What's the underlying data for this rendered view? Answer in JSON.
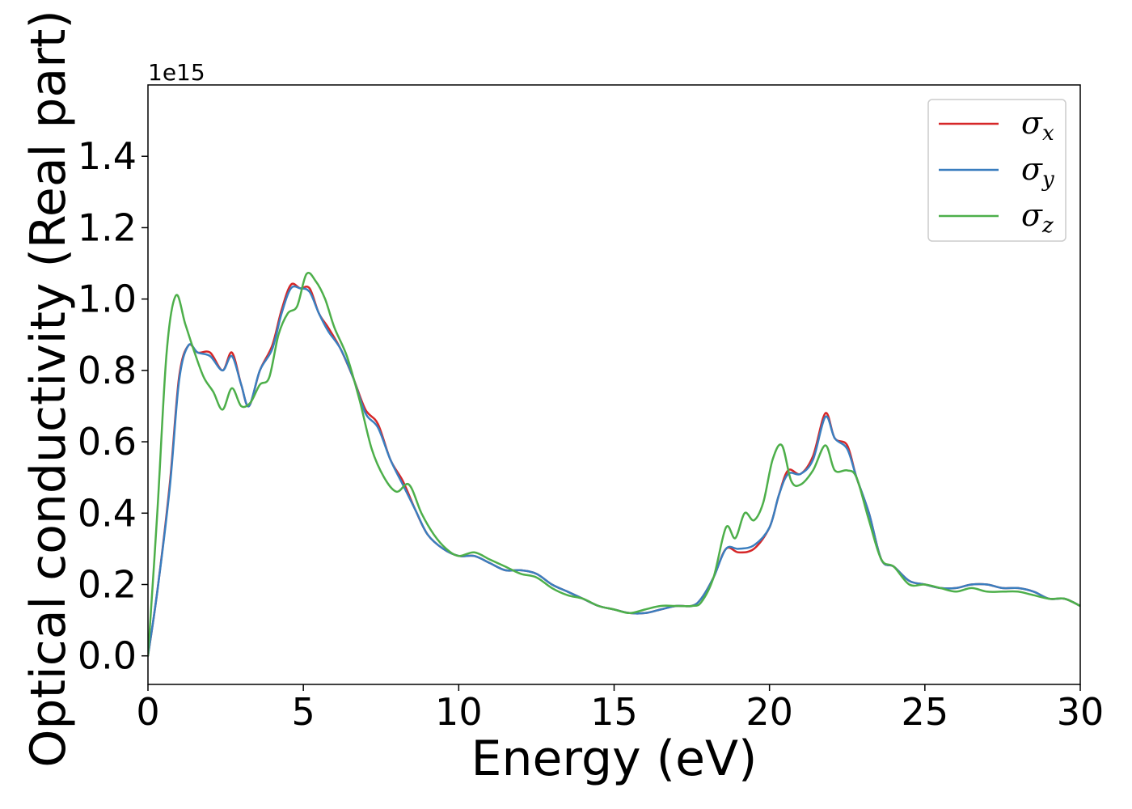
{
  "chart_data": {
    "type": "line",
    "xlabel": "Energy (eV)",
    "ylabel": "Optical conductivity (Real part)",
    "y_offset_text": "1e15",
    "xlim": [
      0,
      30
    ],
    "ylim": [
      -0.08,
      1.6
    ],
    "xticks": [
      0,
      5,
      10,
      15,
      20,
      25,
      30
    ],
    "xtick_labels": [
      "0",
      "5",
      "10",
      "15",
      "20",
      "25",
      "30"
    ],
    "yticks": [
      0.0,
      0.2,
      0.4,
      0.6,
      0.8,
      1.0,
      1.2,
      1.4
    ],
    "ytick_labels": [
      "0.0",
      "0.2",
      "0.4",
      "0.6",
      "0.8",
      "1.0",
      "1.2",
      "1.4"
    ],
    "grid": false,
    "legend_position": "top-right",
    "series": [
      {
        "name": "σ",
        "subscript": "x",
        "color": "#d62728",
        "x": [
          0,
          0.3,
          0.7,
          1.0,
          1.3,
          1.6,
          2.0,
          2.4,
          2.7,
          3.0,
          3.25,
          3.6,
          4.0,
          4.3,
          4.6,
          4.9,
          5.2,
          5.5,
          5.8,
          6.2,
          6.6,
          7.0,
          7.4,
          7.8,
          8.2,
          8.6,
          9.0,
          9.5,
          10.0,
          10.5,
          11.0,
          11.5,
          12.0,
          12.5,
          13.0,
          13.5,
          14.0,
          14.5,
          15.0,
          15.5,
          16.0,
          16.5,
          17.0,
          17.5,
          17.8,
          18.2,
          18.6,
          19.0,
          19.5,
          20.0,
          20.3,
          20.6,
          21.0,
          21.4,
          21.8,
          22.1,
          22.5,
          22.8,
          23.2,
          23.6,
          24.0,
          24.5,
          25.0,
          25.5,
          26.0,
          26.5,
          27.0,
          27.5,
          28.0,
          28.5,
          29.0,
          29.5,
          30.0
        ],
        "y": [
          0.0,
          0.18,
          0.48,
          0.78,
          0.87,
          0.85,
          0.85,
          0.8,
          0.85,
          0.76,
          0.7,
          0.8,
          0.87,
          0.97,
          1.04,
          1.03,
          1.03,
          0.96,
          0.92,
          0.86,
          0.78,
          0.69,
          0.65,
          0.55,
          0.49,
          0.41,
          0.34,
          0.3,
          0.28,
          0.28,
          0.26,
          0.24,
          0.24,
          0.23,
          0.2,
          0.18,
          0.16,
          0.14,
          0.13,
          0.12,
          0.12,
          0.13,
          0.14,
          0.14,
          0.16,
          0.22,
          0.3,
          0.29,
          0.3,
          0.36,
          0.45,
          0.52,
          0.51,
          0.56,
          0.68,
          0.61,
          0.59,
          0.5,
          0.4,
          0.27,
          0.25,
          0.21,
          0.2,
          0.19,
          0.19,
          0.2,
          0.2,
          0.19,
          0.19,
          0.18,
          0.16,
          0.16,
          0.14
        ]
      },
      {
        "name": "σ",
        "subscript": "y",
        "color": "#3a7ebf",
        "x": [
          0,
          0.3,
          0.7,
          1.0,
          1.3,
          1.6,
          2.0,
          2.4,
          2.7,
          3.0,
          3.25,
          3.6,
          4.0,
          4.3,
          4.6,
          4.9,
          5.2,
          5.5,
          5.8,
          6.2,
          6.6,
          7.0,
          7.4,
          7.8,
          8.2,
          8.6,
          9.0,
          9.5,
          10.0,
          10.5,
          11.0,
          11.5,
          12.0,
          12.5,
          13.0,
          13.5,
          14.0,
          14.5,
          15.0,
          15.5,
          16.0,
          16.5,
          17.0,
          17.5,
          17.8,
          18.2,
          18.6,
          19.0,
          19.5,
          20.0,
          20.3,
          20.6,
          21.0,
          21.4,
          21.8,
          22.1,
          22.5,
          22.8,
          23.2,
          23.6,
          24.0,
          24.5,
          25.0,
          25.5,
          26.0,
          26.5,
          27.0,
          27.5,
          28.0,
          28.5,
          29.0,
          29.5,
          30.0
        ],
        "y": [
          0.0,
          0.18,
          0.47,
          0.77,
          0.87,
          0.85,
          0.84,
          0.8,
          0.84,
          0.76,
          0.7,
          0.8,
          0.86,
          0.96,
          1.03,
          1.03,
          1.02,
          0.96,
          0.91,
          0.86,
          0.78,
          0.68,
          0.64,
          0.55,
          0.48,
          0.41,
          0.34,
          0.3,
          0.28,
          0.28,
          0.26,
          0.24,
          0.24,
          0.23,
          0.2,
          0.18,
          0.16,
          0.14,
          0.13,
          0.12,
          0.12,
          0.13,
          0.14,
          0.14,
          0.16,
          0.22,
          0.3,
          0.3,
          0.31,
          0.36,
          0.45,
          0.51,
          0.51,
          0.55,
          0.67,
          0.61,
          0.58,
          0.5,
          0.4,
          0.27,
          0.25,
          0.21,
          0.2,
          0.19,
          0.19,
          0.2,
          0.2,
          0.19,
          0.19,
          0.18,
          0.16,
          0.16,
          0.14
        ]
      },
      {
        "name": "σ",
        "subscript": "z",
        "color": "#4daf4a",
        "x": [
          0,
          0.3,
          0.6,
          0.9,
          1.2,
          1.5,
          1.8,
          2.1,
          2.4,
          2.7,
          3.0,
          3.3,
          3.6,
          3.9,
          4.2,
          4.5,
          4.8,
          5.1,
          5.4,
          5.7,
          6.0,
          6.4,
          6.8,
          7.2,
          7.6,
          8.0,
          8.4,
          8.8,
          9.2,
          9.6,
          10.0,
          10.5,
          11.0,
          11.5,
          12.0,
          12.5,
          13.0,
          13.5,
          14.0,
          14.5,
          15.0,
          15.5,
          16.0,
          16.5,
          17.0,
          17.5,
          17.8,
          18.2,
          18.6,
          18.9,
          19.2,
          19.5,
          19.8,
          20.1,
          20.4,
          20.7,
          21.0,
          21.4,
          21.8,
          22.1,
          22.5,
          22.8,
          23.2,
          23.6,
          24.0,
          24.5,
          25.0,
          25.5,
          26.0,
          26.5,
          27.0,
          27.5,
          28.0,
          28.5,
          29.0,
          29.5,
          30.0
        ],
        "y": [
          0.0,
          0.4,
          0.85,
          1.01,
          0.93,
          0.85,
          0.78,
          0.74,
          0.69,
          0.75,
          0.7,
          0.71,
          0.76,
          0.78,
          0.9,
          0.96,
          0.98,
          1.07,
          1.05,
          1.0,
          0.92,
          0.84,
          0.72,
          0.58,
          0.5,
          0.46,
          0.48,
          0.4,
          0.34,
          0.3,
          0.28,
          0.29,
          0.27,
          0.25,
          0.23,
          0.22,
          0.19,
          0.17,
          0.16,
          0.14,
          0.13,
          0.12,
          0.13,
          0.14,
          0.14,
          0.14,
          0.15,
          0.22,
          0.36,
          0.33,
          0.4,
          0.38,
          0.43,
          0.55,
          0.59,
          0.49,
          0.48,
          0.52,
          0.59,
          0.52,
          0.52,
          0.5,
          0.38,
          0.27,
          0.25,
          0.2,
          0.2,
          0.19,
          0.18,
          0.19,
          0.18,
          0.18,
          0.18,
          0.17,
          0.16,
          0.16,
          0.14
        ]
      }
    ]
  }
}
